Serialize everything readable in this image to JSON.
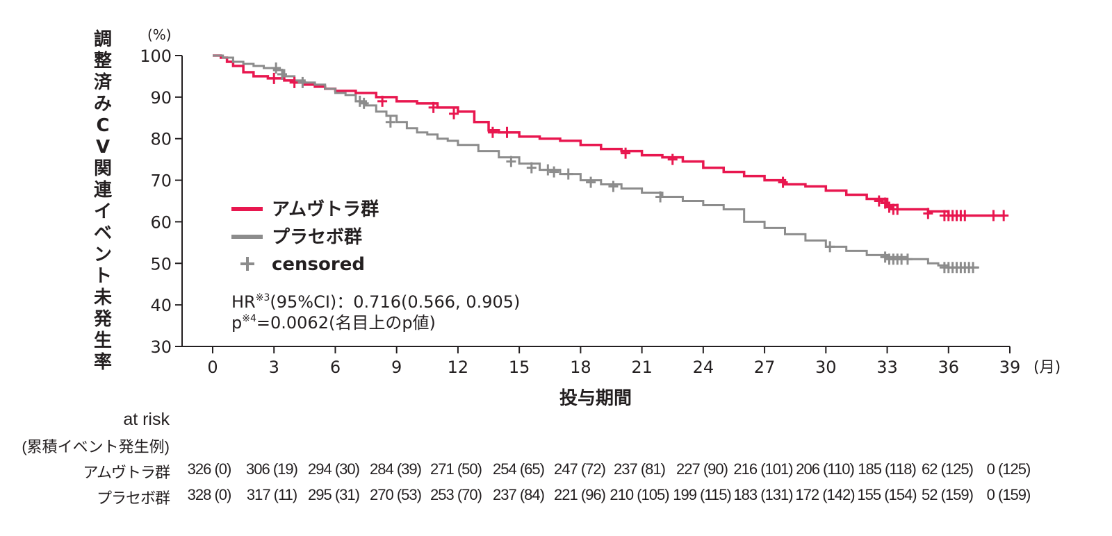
{
  "chart_data": {
    "type": "line",
    "subtype": "kaplan-meier",
    "ylabel_chars": [
      "調",
      "整",
      "済",
      "み",
      "C",
      "V",
      "関",
      "連",
      "イ",
      "ベ",
      "ン",
      "ト",
      "未",
      "発",
      "生",
      "率"
    ],
    "ylabel": "調整済みＣＶ関連イベント未発生率",
    "y_unit": "(%)",
    "x_unit": "(月)",
    "xlabel": "投与期間",
    "ylim": [
      30,
      100
    ],
    "xlim": [
      0,
      39
    ],
    "y_ticks": [
      30,
      40,
      50,
      60,
      70,
      80,
      90,
      100
    ],
    "x_ticks": [
      0,
      3,
      6,
      9,
      12,
      15,
      18,
      21,
      24,
      27,
      30,
      33,
      36,
      39
    ],
    "legend": {
      "placement": "center-left",
      "items": [
        {
          "label": "アムヴトラ群",
          "kind": "line",
          "color": "#e8174f"
        },
        {
          "label": "プラセボ群",
          "kind": "line",
          "color": "#8c8c8c"
        },
        {
          "label": "censored",
          "kind": "marker",
          "color": "#8c8c8c"
        }
      ]
    },
    "annotation": {
      "line1_prefix": "HR",
      "line1_sup": "※3",
      "line1_rest": "(95%CI)：0.716(0.566, 0.905)",
      "line2_prefix": "p",
      "line2_sup": "※4",
      "line2_rest": "=0.0062(名目上のp値)"
    },
    "series": [
      {
        "name": "アムヴトラ群",
        "color": "#e8174f",
        "x": [
          0,
          0.4,
          0.7,
          1.0,
          1.5,
          2.0,
          2.7,
          3.5,
          4.0,
          4.5,
          5.0,
          5.5,
          6.0,
          7.0,
          8.0,
          9.0,
          10.0,
          11.0,
          12.0,
          12.8,
          13.5,
          14.0,
          15.0,
          16.0,
          17.0,
          18.0,
          19.0,
          20.0,
          21.0,
          22.0,
          23.0,
          24.0,
          25.0,
          26.0,
          27.0,
          28.0,
          29.0,
          30.0,
          31.0,
          32.0,
          33.0,
          33.5,
          35.0,
          36.0,
          37.0,
          38.7
        ],
        "y": [
          100,
          99.5,
          98.5,
          97.5,
          96,
          95,
          94.5,
          94,
          93.5,
          93,
          92.5,
          92,
          91.5,
          91,
          90,
          89,
          88.5,
          87.5,
          86.5,
          84,
          82,
          81.5,
          80.5,
          80,
          79.5,
          78.5,
          77.5,
          77,
          76,
          75.5,
          74.5,
          73,
          72,
          71,
          70,
          69,
          68.5,
          67.5,
          66.5,
          65.5,
          64,
          63,
          62.5,
          61.5,
          61.5,
          61.5
        ],
        "censored_x": [
          3.0,
          4.0,
          8.3,
          10.8,
          11.8,
          13.7,
          14.4,
          20.2,
          22.5,
          27.9,
          32.6,
          32.9,
          33.1,
          33.3,
          33.5,
          35.0,
          35.8,
          36.0,
          36.2,
          36.4,
          36.6,
          36.8,
          38.2,
          38.7
        ],
        "censored_y": [
          94.5,
          93.5,
          89.0,
          87.5,
          86.0,
          81.5,
          81.5,
          76.5,
          75.0,
          69.5,
          65.0,
          64.5,
          63.5,
          63.0,
          63.0,
          62.0,
          61.5,
          61.5,
          61.5,
          61.5,
          61.5,
          61.5,
          61.5,
          61.5
        ]
      },
      {
        "name": "プラセボ群",
        "color": "#8c8c8c",
        "x": [
          0,
          0.5,
          1.0,
          1.5,
          2.0,
          2.5,
          3.0,
          3.5,
          4.0,
          4.5,
          5.0,
          5.5,
          6.0,
          6.5,
          7.0,
          7.5,
          8.0,
          8.5,
          9.0,
          9.5,
          10.0,
          10.5,
          11.0,
          11.5,
          12.0,
          13.0,
          14.0,
          15.0,
          16.0,
          17.0,
          18.0,
          19.0,
          20.0,
          21.0,
          22.0,
          23.0,
          24.0,
          25.0,
          26.0,
          27.0,
          28.0,
          29.0,
          30.0,
          31.0,
          32.0,
          33.0,
          34.0,
          35.0,
          35.5,
          36.0,
          37.5
        ],
        "y": [
          100,
          99.5,
          98.5,
          98,
          97.5,
          97,
          96.5,
          95,
          94,
          93.5,
          93,
          92,
          91,
          90.5,
          89,
          88,
          86.5,
          85.5,
          84,
          82.5,
          81.5,
          81,
          80,
          79.5,
          78.5,
          77,
          75.5,
          74,
          72.5,
          71.5,
          70,
          69,
          68,
          67,
          66,
          65,
          64,
          63,
          60,
          58.5,
          57,
          55.5,
          54,
          53,
          52,
          51.5,
          51,
          50,
          49.5,
          49,
          49
        ],
        "censored_x": [
          3.1,
          3.4,
          4.4,
          7.2,
          7.4,
          8.7,
          14.6,
          15.6,
          16.4,
          16.7,
          17.4,
          18.5,
          19.6,
          21.9,
          30.2,
          32.9,
          33.1,
          33.3,
          33.5,
          33.7,
          34.0,
          35.8,
          36.0,
          36.2,
          36.4,
          36.6,
          36.8,
          37.0,
          37.2
        ],
        "censored_y": [
          97.0,
          95.5,
          93.5,
          89.0,
          88.5,
          84.0,
          74.5,
          73.0,
          72.5,
          72.0,
          71.5,
          69.5,
          68.5,
          66.0,
          54.0,
          51.5,
          51.0,
          51.0,
          51.0,
          51.0,
          51.0,
          49.0,
          49.0,
          49.0,
          49.0,
          49.0,
          49.0,
          49.0,
          49.0
        ]
      }
    ]
  },
  "at_risk": {
    "title_line1": "at risk",
    "title_line2": "(累積イベント発生例)",
    "rows": [
      {
        "name": "アムヴトラ群",
        "cells": [
          "326 (0)",
          "306 (19)",
          "294 (30)",
          "284 (39)",
          "271 (50)",
          "254 (65)",
          "247 (72)",
          "237 (81)",
          "227 (90)",
          "216 (101)",
          "206 (110)",
          "185 (118)",
          "62 (125)",
          "0 (125)"
        ]
      },
      {
        "name": "プラセボ群",
        "cells": [
          "328 (0)",
          "317 (11)",
          "295 (31)",
          "270 (53)",
          "253 (70)",
          "237 (84)",
          "221 (96)",
          "210 (105)",
          "199 (115)",
          "183 (131)",
          "172 (142)",
          "155 (154)",
          "52 (159)",
          "0 (159)"
        ]
      }
    ]
  }
}
